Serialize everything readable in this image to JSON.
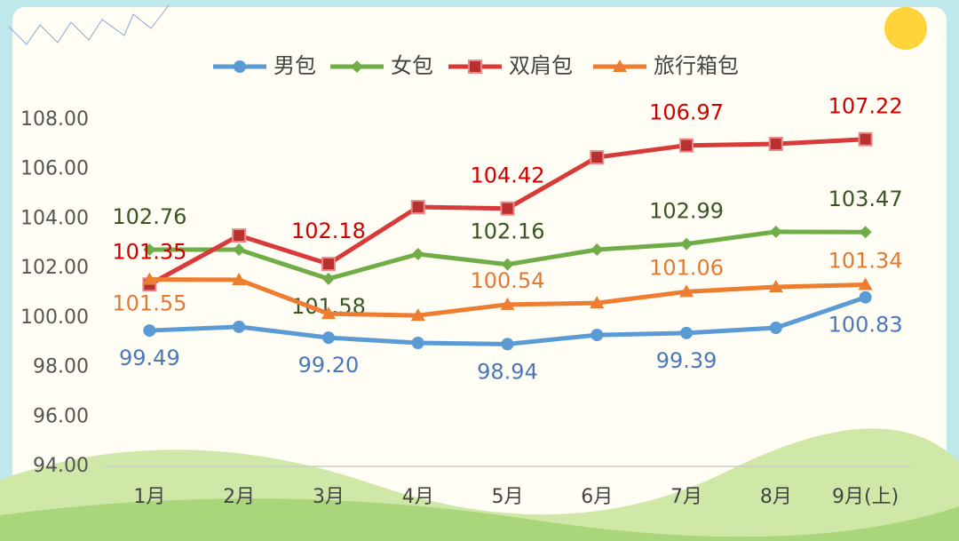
{
  "chart_data": {
    "type": "line",
    "categories": [
      "1月",
      "2月",
      "3月",
      "4月",
      "5月",
      "6月",
      "7月",
      "8月",
      "9月(上)"
    ],
    "ylim": [
      94,
      108
    ],
    "yticks": [
      {
        "value": 94,
        "label": "94.00"
      },
      {
        "value": 96,
        "label": "96.00"
      },
      {
        "value": 98,
        "label": "98.00"
      },
      {
        "value": 100,
        "label": "100.00"
      },
      {
        "value": 102,
        "label": "102.00"
      },
      {
        "value": 104,
        "label": "104.00"
      },
      {
        "value": 106,
        "label": "106.00"
      },
      {
        "value": 108,
        "label": "108.00"
      }
    ],
    "legend": "top",
    "series": [
      {
        "name": "男包",
        "color": "#5b9bd5",
        "label_color": "#4a78b8",
        "marker": "circle",
        "values": [
          99.49,
          99.64,
          99.2,
          98.99,
          98.94,
          99.31,
          99.39,
          99.6,
          100.83
        ],
        "value_labels": [
          "99.49",
          null,
          "99.20",
          null,
          "98.94",
          null,
          "99.39",
          null,
          "100.83"
        ]
      },
      {
        "name": "女包",
        "color": "#70ad47",
        "label_color": "#375623",
        "marker": "diamond",
        "values": [
          102.76,
          102.76,
          101.58,
          102.58,
          102.16,
          102.76,
          102.99,
          103.48,
          103.47
        ],
        "value_labels": [
          "102.76",
          null,
          "101.58",
          null,
          "102.16",
          null,
          "102.99",
          null,
          "103.47"
        ]
      },
      {
        "name": "双肩包",
        "color": "#d83a3a",
        "label_color": "#d00000",
        "marker": "square",
        "values": [
          101.35,
          103.33,
          102.18,
          104.48,
          104.42,
          106.49,
          106.97,
          107.03,
          107.22
        ],
        "value_labels": [
          "101.35",
          null,
          "102.18",
          null,
          "104.42",
          null,
          "106.97",
          null,
          "107.22"
        ]
      },
      {
        "name": "旅行箱包",
        "color": "#ed7d31",
        "label_color": "#e07a35",
        "marker": "triangle",
        "values": [
          101.55,
          101.54,
          100.17,
          100.1,
          100.54,
          100.6,
          101.06,
          101.25,
          101.34
        ],
        "value_labels": [
          "101.55",
          null,
          null,
          null,
          "100.54",
          null,
          "101.06",
          null,
          "101.34"
        ]
      }
    ]
  }
}
